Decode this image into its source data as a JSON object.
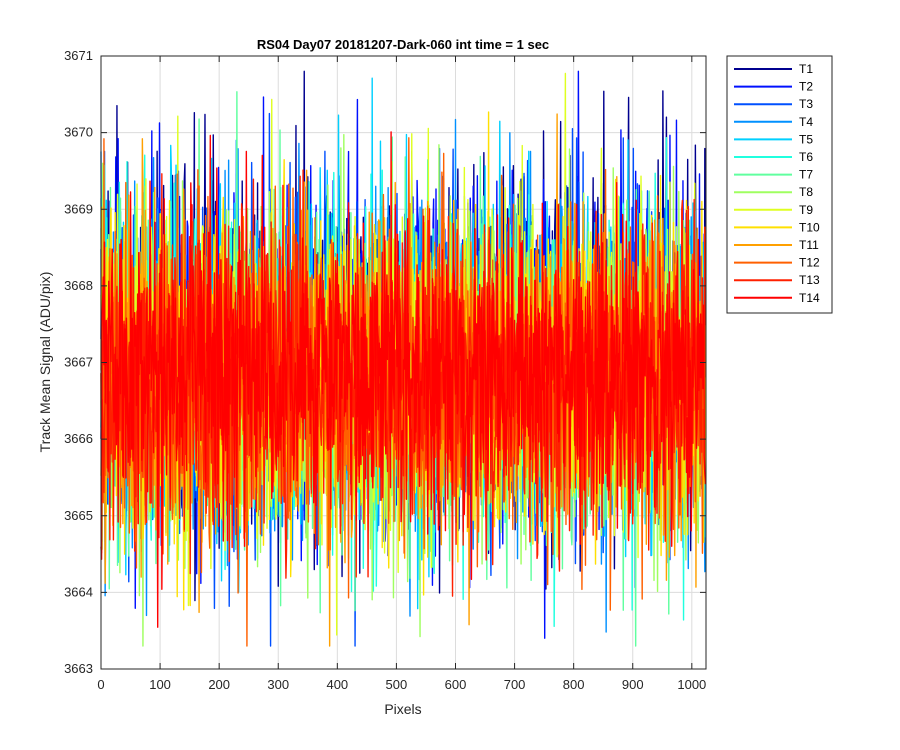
{
  "chart_data": {
    "type": "line",
    "title": "RS04 Day07 20181207-Dark-060 int time = 1 sec",
    "xlabel": "Pixels",
    "ylabel": "Track Mean Signal (ADU/pix)",
    "xlim": [
      0,
      1024
    ],
    "ylim": [
      3663,
      3671
    ],
    "xticks": [
      0,
      100,
      200,
      300,
      400,
      500,
      600,
      700,
      800,
      900,
      1000
    ],
    "yticks": [
      3663,
      3664,
      3665,
      3666,
      3667,
      3668,
      3669,
      3670,
      3671
    ],
    "grid": true,
    "legend_position": "outside-top-right",
    "n_points": 1024,
    "series": [
      {
        "name": "T1",
        "color": "#00008F",
        "mean": 3667.2,
        "sd": 1.15
      },
      {
        "name": "T2",
        "color": "#0010FF",
        "mean": 3667.1,
        "sd": 1.1
      },
      {
        "name": "T3",
        "color": "#0050FF",
        "mean": 3667.0,
        "sd": 1.1
      },
      {
        "name": "T4",
        "color": "#0090FF",
        "mean": 3666.9,
        "sd": 1.05
      },
      {
        "name": "T5",
        "color": "#00D0FF",
        "mean": 3666.9,
        "sd": 1.05
      },
      {
        "name": "T6",
        "color": "#20FFDF",
        "mean": 3666.8,
        "sd": 1.05
      },
      {
        "name": "T7",
        "color": "#60FF9F",
        "mean": 3666.8,
        "sd": 1.05
      },
      {
        "name": "T8",
        "color": "#9FFF60",
        "mean": 3666.8,
        "sd": 1.05
      },
      {
        "name": "T9",
        "color": "#DFFF20",
        "mean": 3666.9,
        "sd": 1.05
      },
      {
        "name": "T10",
        "color": "#FFE000",
        "mean": 3666.9,
        "sd": 1.05
      },
      {
        "name": "T11",
        "color": "#FFA000",
        "mean": 3666.9,
        "sd": 1.0
      },
      {
        "name": "T12",
        "color": "#FF6000",
        "mean": 3666.8,
        "sd": 1.0
      },
      {
        "name": "T13",
        "color": "#FF2000",
        "mean": 3666.8,
        "sd": 1.0
      },
      {
        "name": "T14",
        "color": "#FF0000",
        "mean": 3666.9,
        "sd": 0.95
      }
    ]
  }
}
